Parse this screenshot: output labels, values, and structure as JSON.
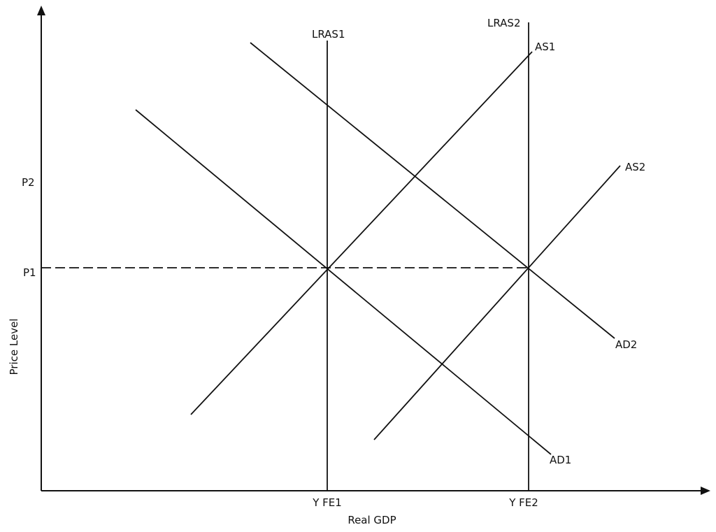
{
  "axes": {
    "x_label": "Real GDP",
    "y_label": "Price Level"
  },
  "price_levels": {
    "p1": "P1",
    "p2": "P2"
  },
  "output_levels": {
    "yfe1": "Y FE1",
    "yfe2": "Y FE2"
  },
  "curves": {
    "lras1": "LRAS1",
    "lras2": "LRAS2",
    "as1": "AS1",
    "as2": "AS2",
    "ad1": "AD1",
    "ad2": "AD2"
  }
}
